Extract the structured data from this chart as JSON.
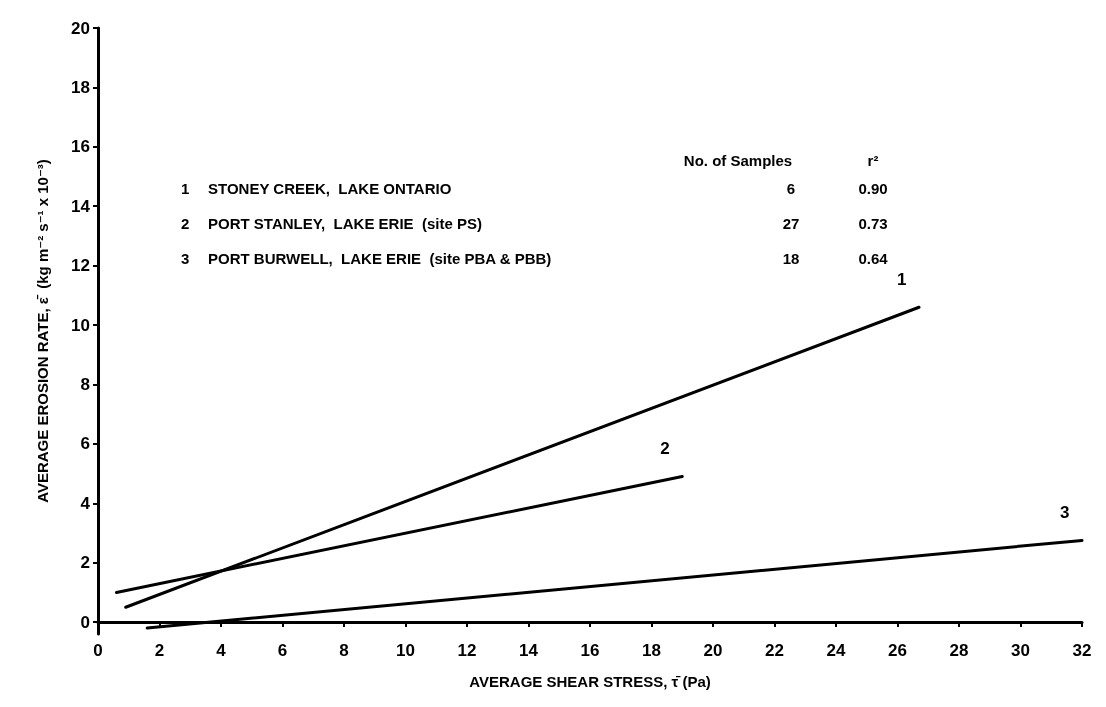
{
  "chart_data": {
    "type": "line",
    "xlabel": "AVERAGE SHEAR STRESS, τ̄ (Pa)",
    "ylabel": "AVERAGE EROSION RATE, ε̄  (kg m⁻² s⁻¹ x 10⁻³)",
    "series": [
      {
        "name": "1",
        "color": "#000000",
        "x": [
          0.9,
          26.7
        ],
        "values": [
          0.5,
          10.6
        ]
      },
      {
        "name": "2",
        "color": "#000000",
        "x": [
          0.6,
          19
        ],
        "values": [
          1.0,
          4.9
        ]
      },
      {
        "name": "3",
        "color": "#000000",
        "x": [
          1.6,
          32
        ],
        "values": [
          -0.2,
          2.75
        ]
      }
    ],
    "xlim": [
      0,
      32
    ],
    "xticks": [
      0,
      2,
      4,
      6,
      8,
      10,
      12,
      14,
      16,
      18,
      20,
      22,
      24,
      26,
      28,
      30,
      32
    ],
    "ylim": [
      -0.4,
      20
    ],
    "yticks": [
      0,
      2,
      4,
      6,
      8,
      10,
      12,
      14,
      16,
      18,
      20
    ],
    "grid": false,
    "legend": false,
    "marker": "none",
    "line_style": "solid",
    "annotations": [
      "No. of Samples",
      "r²",
      "1",
      "STONEY CREEK,  LAKE ONTARIO",
      "6",
      "0.90",
      "2",
      "PORT STANLEY,  LAKE ERIE  (site PS)",
      "27",
      "0.73",
      "3",
      "PORT BURWELL,  LAKE ERIE  (site PBA & PBB)",
      "18",
      "0.64"
    ]
  }
}
